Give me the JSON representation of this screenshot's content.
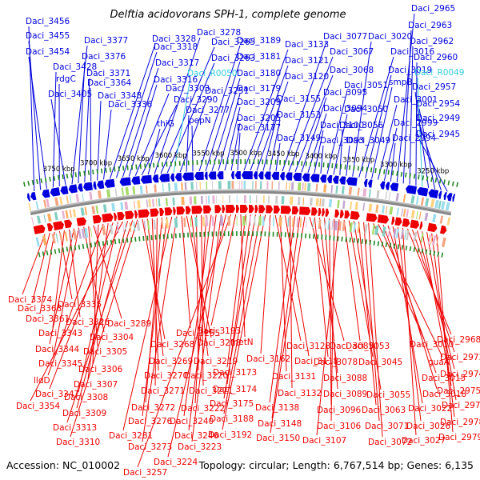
{
  "title": "Delftia acidovorans SPH-1, complete genome",
  "footer": {
    "accession": "Accession: NC_010002",
    "summary": "Topology: circular; Length: 6,767,514 bp; Genes: 6,135"
  },
  "colors": {
    "forward": "#0000dd",
    "reverse": "#ee0000",
    "rna": "#33ccdd",
    "tick": "#228822",
    "backbone": "#888888"
  },
  "kbp_ticks": [
    "3750 kbp",
    "3700 kbp",
    "3650 kbp",
    "3600 kbp",
    "3550 kbp",
    "3500 kbp",
    "3450 kbp",
    "3400 kbp",
    "3350 kbp",
    "3300 kbp",
    "3250 kbp"
  ],
  "top_labels": [
    {
      "t": "Daci_3456",
      "c": "f"
    },
    {
      "t": "Daci_3455",
      "c": "f"
    },
    {
      "t": "Daci_3454",
      "c": "f"
    },
    {
      "t": "Daci_3428",
      "c": "f"
    },
    {
      "t": "rdgC",
      "c": "f"
    },
    {
      "t": "Daci_3405",
      "c": "f"
    },
    {
      "t": "Daci_3377",
      "c": "f"
    },
    {
      "t": "Daci_3376",
      "c": "f"
    },
    {
      "t": "Daci_3371",
      "c": "f"
    },
    {
      "t": "Daci_3364",
      "c": "f"
    },
    {
      "t": "Daci_3348",
      "c": "f"
    },
    {
      "t": "Daci_3336",
      "c": "f"
    },
    {
      "t": "Daci_3328",
      "c": "f"
    },
    {
      "t": "Daci_3318",
      "c": "f"
    },
    {
      "t": "Daci_3317",
      "c": "f"
    },
    {
      "t": "Daci_3316",
      "c": "f"
    },
    {
      "t": "Daci_3303",
      "c": "f"
    },
    {
      "t": "Daci_3290",
      "c": "f"
    },
    {
      "t": "thiG",
      "c": "f"
    },
    {
      "t": "Daci_3278",
      "c": "f"
    },
    {
      "t": "Daci_3265",
      "c": "f"
    },
    {
      "t": "Daci_3263",
      "c": "f"
    },
    {
      "t": "Daci_R0050",
      "c": "r"
    },
    {
      "t": "Daci_3251",
      "c": "f"
    },
    {
      "t": "Daci_3277",
      "c": "f"
    },
    {
      "t": "pepN",
      "c": "f"
    },
    {
      "t": "Daci_3189",
      "c": "f"
    },
    {
      "t": "Daci_3181",
      "c": "f"
    },
    {
      "t": "Daci_3180",
      "c": "f"
    },
    {
      "t": "Daci_3179",
      "c": "f"
    },
    {
      "t": "Daci_3209",
      "c": "f"
    },
    {
      "t": "Daci_3205",
      "c": "f"
    },
    {
      "t": "Daci_3177",
      "c": "f"
    },
    {
      "t": "Daci_3133",
      "c": "f"
    },
    {
      "t": "Daci_3121",
      "c": "f"
    },
    {
      "t": "Daci_3120",
      "c": "f"
    },
    {
      "t": "Daci_3155",
      "c": "f"
    },
    {
      "t": "Daci_3153",
      "c": "f"
    },
    {
      "t": "Daci_3149",
      "c": "f"
    },
    {
      "t": "Daci_3077",
      "c": "f"
    },
    {
      "t": "Daci_3067",
      "c": "f"
    },
    {
      "t": "Daci_3068",
      "c": "f"
    },
    {
      "t": "Daci_3095",
      "c": "f"
    },
    {
      "t": "Daci_3094",
      "c": "f"
    },
    {
      "t": "Daci_3100",
      "c": "f"
    },
    {
      "t": "Daci_3093",
      "c": "f"
    },
    {
      "t": "Daci_3051",
      "c": "f"
    },
    {
      "t": "Daci_3050",
      "c": "f"
    },
    {
      "t": "Daci_3056",
      "c": "f"
    },
    {
      "t": "Daci_3049",
      "c": "f"
    },
    {
      "t": "Daci_3020",
      "c": "f"
    },
    {
      "t": "Daci_3016",
      "c": "f"
    },
    {
      "t": "Daci_3019",
      "c": "f"
    },
    {
      "t": "smpB",
      "c": "f"
    },
    {
      "t": "Daci_3001",
      "c": "f"
    },
    {
      "t": "Daci_2999",
      "c": "f"
    },
    {
      "t": "Daci_2994",
      "c": "f"
    },
    {
      "t": "Daci_2965",
      "c": "f"
    },
    {
      "t": "Daci_2963",
      "c": "f"
    },
    {
      "t": "Daci_2962",
      "c": "f"
    },
    {
      "t": "Daci_2960",
      "c": "f"
    },
    {
      "t": "Daci_R0049",
      "c": "r"
    },
    {
      "t": "Daci_2957",
      "c": "f"
    },
    {
      "t": "Daci_2954",
      "c": "f"
    },
    {
      "t": "Daci_2949",
      "c": "f"
    },
    {
      "t": "Daci_2945",
      "c": "f"
    }
  ],
  "bottom_labels": [
    "Daci_3374",
    "Daci_3368",
    "Daci_3361",
    "Daci_3335",
    "Daci_3343",
    "Daci_3326",
    "Daci_3344",
    "Daci_3345",
    "Daci_3304",
    "Daci_3305",
    "Daci_3289",
    "Daci_3306",
    "lldD",
    "Daci_3307",
    "Daci_3347",
    "Daci_3308",
    "Daci_3354",
    "Daci_3309",
    "Daci_3313",
    "Daci_3310",
    "Daci_3268",
    "Daci_3269",
    "Daci_3270",
    "Daci_3271",
    "Daci_3272",
    "Daci_3276",
    "Daci_3281",
    "Daci_3273",
    "Daci_3255",
    "Daci_3218",
    "Daci_3219",
    "Daci_3220",
    "Daci_3221",
    "Daci_3222",
    "Daci_3240",
    "Daci_3246",
    "Daci_3223",
    "Daci_3224",
    "Daci_3257",
    "Daci_3193",
    "metN",
    "Daci_3173",
    "Daci_3174",
    "Daci_3175",
    "Daci_3188",
    "Daci_3192",
    "Daci_3162",
    "Daci_3128",
    "Daci_3131",
    "Daci_3118",
    "Daci_3132",
    "Daci_3138",
    "Daci_3148",
    "Daci_3150",
    "Daci_3085",
    "Daci_3078",
    "Daci_3088",
    "Daci_3089",
    "Daci_3096",
    "Daci_3106",
    "Daci_3107",
    "Daci_3053",
    "Daci_3045",
    "Daci_3055",
    "Daci_3063",
    "Daci_3071",
    "Daci_3072",
    "Daci_3010",
    "guaA",
    "Daci_3015",
    "Daci_3018",
    "Daci_3022",
    "Daci_3026",
    "Daci_3027",
    "Daci_2968",
    "Daci_2973",
    "Daci_2974",
    "Daci_2975",
    "Daci_2976",
    "Daci_2978",
    "Daci_2979"
  ]
}
